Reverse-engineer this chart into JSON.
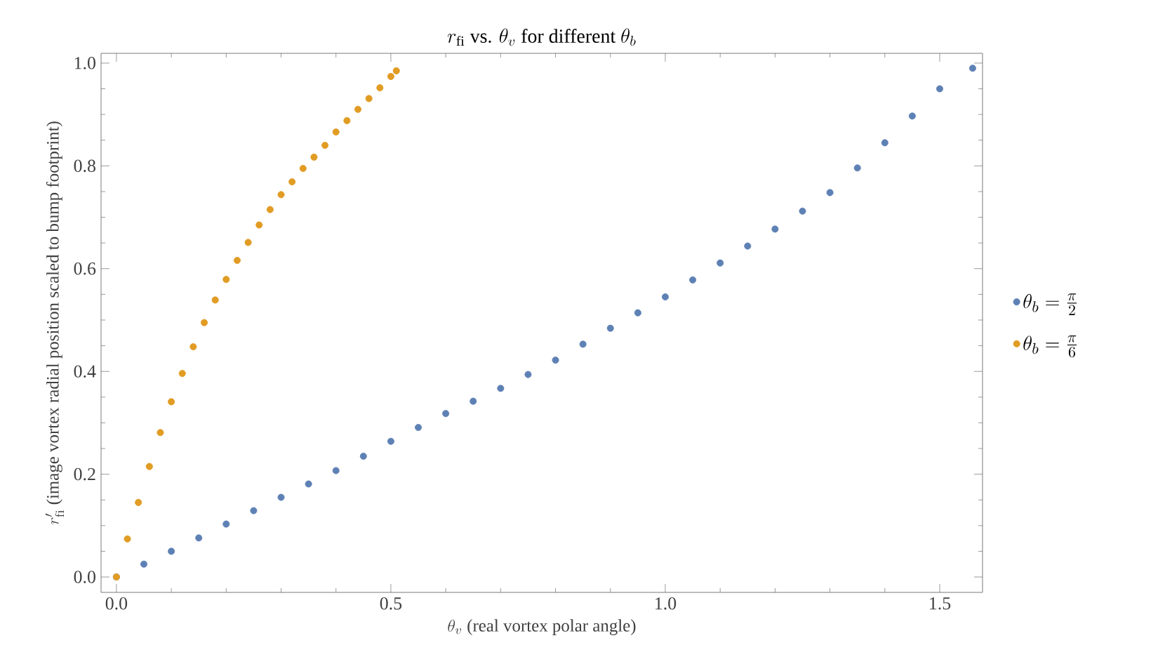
{
  "chart_data": {
    "type": "scatter",
    "title": "r_{\\mathrm{fi}}\\textrm{ vs. }\\theta_v\\textrm{ for different }\\theta_b",
    "xlabel": "\\theta_v\\textrm{ (real vortex polar angle)}",
    "ylabel": "r_{\\mathrm{fi}}'\\textrm{ (image vortex radial position scaled to bump footprint)}",
    "marker": "circle",
    "legend": "right",
    "xlim": [
      -0.028,
      1.578
    ],
    "ylim": [
      -0.03,
      1.019
    ],
    "xticks": [
      {
        "value": 0,
        "label": "0.0"
      },
      {
        "value": 0.5,
        "label": "0.5"
      },
      {
        "value": 1,
        "label": "1.0"
      },
      {
        "value": 1.5,
        "label": "1.5"
      }
    ],
    "yticks": [
      {
        "value": 0,
        "label": "0.0"
      },
      {
        "value": 0.2,
        "label": "0.2"
      },
      {
        "value": 0.4,
        "label": "0.4"
      },
      {
        "value": 0.6,
        "label": "0.6"
      },
      {
        "value": 0.8,
        "label": "0.8"
      },
      {
        "value": 1,
        "label": "1.0"
      }
    ],
    "series": [
      {
        "name": "\\theta_b = \\frac{\\pi}{2}",
        "color": "#5e81b5",
        "x": [
          0,
          0.05,
          0.1,
          0.15,
          0.2,
          0.25,
          0.3,
          0.35,
          0.4,
          0.45,
          0.5,
          0.55,
          0.6,
          0.65,
          0.7,
          0.75,
          0.8,
          0.85,
          0.9,
          0.95,
          1.0,
          1.05,
          1.1,
          1.15,
          1.2,
          1.25,
          1.3,
          1.35,
          1.4,
          1.45,
          1.5,
          1.56
        ],
        "values": [
          0,
          0.025,
          0.05,
          0.076,
          0.103,
          0.129,
          0.155,
          0.181,
          0.207,
          0.235,
          0.264,
          0.291,
          0.318,
          0.342,
          0.367,
          0.394,
          0.422,
          0.453,
          0.484,
          0.514,
          0.545,
          0.578,
          0.611,
          0.644,
          0.677,
          0.712,
          0.748,
          0.796,
          0.845,
          0.897,
          0.95,
          0.99
        ]
      },
      {
        "name": "\\theta_b = \\frac{\\pi}{6}",
        "color": "#e19c24",
        "x": [
          0,
          0.02,
          0.04,
          0.06,
          0.08,
          0.1,
          0.12,
          0.14,
          0.16,
          0.18,
          0.2,
          0.22,
          0.24,
          0.26,
          0.28,
          0.3,
          0.32,
          0.34,
          0.36,
          0.38,
          0.4,
          0.42,
          0.44,
          0.46,
          0.48,
          0.5,
          0.51
        ],
        "values": [
          0,
          0.074,
          0.145,
          0.215,
          0.281,
          0.341,
          0.396,
          0.448,
          0.495,
          0.539,
          0.579,
          0.616,
          0.651,
          0.685,
          0.715,
          0.744,
          0.769,
          0.795,
          0.817,
          0.84,
          0.866,
          0.888,
          0.91,
          0.931,
          0.952,
          0.974,
          0.985
        ]
      }
    ]
  }
}
